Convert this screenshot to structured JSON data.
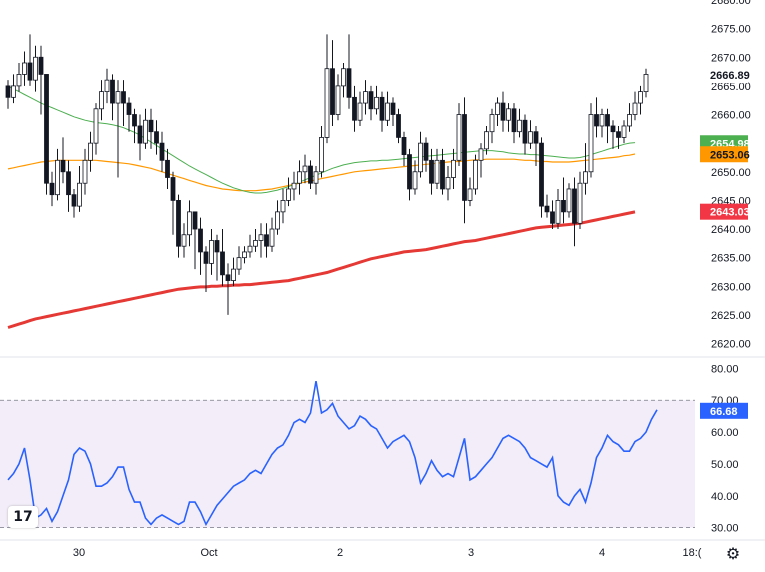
{
  "chart_data": [
    {
      "type": "candlestick",
      "ylim": [
        2618,
        2680
      ],
      "y_ticks": [
        "2680.00",
        "2675.00",
        "2670.00",
        "2665.00",
        "2660.00",
        "2650.00",
        "2645.00",
        "2640.00",
        "2635.00",
        "2630.00",
        "2625.00",
        "2620.00"
      ],
      "x_ticks": [
        "30",
        "Oct",
        "2",
        "3",
        "4",
        "18:("
      ],
      "price_labels": [
        {
          "value": 2666.89,
          "text": "2666.89",
          "bg": "#ffffff",
          "fg": "#131722"
        },
        {
          "value": 2654.98,
          "text": "2654.98",
          "bg": "#4caf50",
          "fg": "#ffffff"
        },
        {
          "value": 2653.06,
          "text": "2653.06",
          "bg": "#ff9800",
          "fg": "#131722"
        },
        {
          "value": 2643.03,
          "text": "2643.03",
          "bg": "#f23645",
          "fg": "#ffffff"
        }
      ],
      "candles": [
        [
          2665,
          2663,
          2666,
          2661
        ],
        [
          2663,
          2665,
          2667,
          2662
        ],
        [
          2665,
          2667,
          2669,
          2664
        ],
        [
          2667,
          2669,
          2671,
          2665
        ],
        [
          2669,
          2666,
          2674,
          2665
        ],
        [
          2666,
          2670,
          2672,
          2664
        ],
        [
          2670,
          2667,
          2672,
          2660
        ],
        [
          2667,
          2648,
          2667,
          2646
        ],
        [
          2648,
          2646,
          2650,
          2644
        ],
        [
          2646,
          2652,
          2654,
          2645
        ],
        [
          2652,
          2650,
          2656,
          2648
        ],
        [
          2650,
          2646,
          2652,
          2643
        ],
        [
          2646,
          2644,
          2647,
          2642
        ],
        [
          2644,
          2648,
          2651,
          2643
        ],
        [
          2648,
          2652,
          2654,
          2646
        ],
        [
          2652,
          2655,
          2657,
          2650
        ],
        [
          2655,
          2661,
          2662,
          2653
        ],
        [
          2661,
          2664,
          2666,
          2659
        ],
        [
          2664,
          2666,
          2668,
          2662
        ],
        [
          2666,
          2662,
          2667,
          2659
        ],
        [
          2662,
          2664,
          2666,
          2649
        ],
        [
          2664,
          2662,
          2666,
          2658
        ],
        [
          2662,
          2660,
          2663,
          2657
        ],
        [
          2660,
          2658,
          2661,
          2655
        ],
        [
          2658,
          2655,
          2660,
          2652
        ],
        [
          2655,
          2659,
          2661,
          2654
        ],
        [
          2659,
          2657,
          2661,
          2654
        ],
        [
          2657,
          2655,
          2659,
          2653
        ],
        [
          2655,
          2652,
          2657,
          2650
        ],
        [
          2652,
          2649,
          2654,
          2647
        ],
        [
          2649,
          2645,
          2650,
          2639
        ],
        [
          2645,
          2637,
          2646,
          2635
        ],
        [
          2637,
          2639,
          2641,
          2635
        ],
        [
          2639,
          2643,
          2645,
          2637
        ],
        [
          2643,
          2640,
          2643,
          2633
        ],
        [
          2640,
          2636,
          2642,
          2632
        ],
        [
          2636,
          2634,
          2637,
          2629
        ],
        [
          2634,
          2638,
          2640,
          2632
        ],
        [
          2638,
          2636,
          2639,
          2631
        ],
        [
          2636,
          2632,
          2640,
          2630
        ],
        [
          2632,
          2631,
          2634,
          2625
        ],
        [
          2631,
          2633,
          2635,
          2630
        ],
        [
          2633,
          2635,
          2637,
          2632
        ],
        [
          2635,
          2636,
          2637,
          2634
        ],
        [
          2636,
          2637,
          2639,
          2635
        ],
        [
          2637,
          2638,
          2640,
          2636
        ],
        [
          2638,
          2639,
          2641,
          2635
        ],
        [
          2639,
          2637,
          2641,
          2635
        ],
        [
          2637,
          2640,
          2642,
          2636
        ],
        [
          2640,
          2643,
          2645,
          2639
        ],
        [
          2643,
          2645,
          2647,
          2641
        ],
        [
          2645,
          2647,
          2649,
          2644
        ],
        [
          2647,
          2648,
          2650,
          2645
        ],
        [
          2648,
          2650,
          2652,
          2646
        ],
        [
          2650,
          2651,
          2653,
          2648
        ],
        [
          2651,
          2648,
          2652,
          2647
        ],
        [
          2648,
          2650,
          2651,
          2646
        ],
        [
          2650,
          2656,
          2658,
          2649
        ],
        [
          2656,
          2668,
          2674,
          2655
        ],
        [
          2668,
          2660,
          2673,
          2658
        ],
        [
          2660,
          2665,
          2667,
          2659
        ],
        [
          2665,
          2668,
          2669,
          2663
        ],
        [
          2668,
          2663,
          2674,
          2661
        ],
        [
          2663,
          2659,
          2665,
          2657
        ],
        [
          2659,
          2662,
          2664,
          2658
        ],
        [
          2662,
          2664,
          2666,
          2660
        ],
        [
          2664,
          2661,
          2665,
          2659
        ],
        [
          2661,
          2663,
          2665,
          2660
        ],
        [
          2663,
          2659,
          2664,
          2657
        ],
        [
          2659,
          2662,
          2664,
          2658
        ],
        [
          2662,
          2660,
          2663,
          2658
        ],
        [
          2660,
          2656,
          2661,
          2655
        ],
        [
          2656,
          2653,
          2657,
          2651
        ],
        [
          2653,
          2647,
          2654,
          2645
        ],
        [
          2647,
          2650,
          2652,
          2646
        ],
        [
          2650,
          2655,
          2657,
          2649
        ],
        [
          2655,
          2652,
          2656,
          2650
        ],
        [
          2652,
          2648,
          2654,
          2646
        ],
        [
          2648,
          2652,
          2654,
          2647
        ],
        [
          2652,
          2647,
          2654,
          2646
        ],
        [
          2647,
          2649,
          2651,
          2645
        ],
        [
          2649,
          2652,
          2654,
          2647
        ],
        [
          2652,
          2660,
          2662,
          2651
        ],
        [
          2660,
          2645,
          2663,
          2641
        ],
        [
          2645,
          2647,
          2649,
          2644
        ],
        [
          2647,
          2652,
          2653,
          2646
        ],
        [
          2652,
          2654,
          2655,
          2649
        ],
        [
          2654,
          2657,
          2658,
          2653
        ],
        [
          2657,
          2660,
          2661,
          2655
        ],
        [
          2660,
          2662,
          2663,
          2658
        ],
        [
          2662,
          2659,
          2664,
          2657
        ],
        [
          2659,
          2661,
          2662,
          2657
        ],
        [
          2661,
          2657,
          2662,
          2655
        ],
        [
          2657,
          2659,
          2661,
          2656
        ],
        [
          2659,
          2655,
          2660,
          2653
        ],
        [
          2655,
          2657,
          2659,
          2654
        ],
        [
          2657,
          2655,
          2658,
          2651
        ],
        [
          2655,
          2644,
          2656,
          2642
        ],
        [
          2644,
          2643,
          2646,
          2642
        ],
        [
          2643,
          2641,
          2645,
          2640
        ],
        [
          2641,
          2645,
          2647,
          2640
        ],
        [
          2645,
          2643,
          2649,
          2641
        ],
        [
          2643,
          2647,
          2648,
          2642
        ],
        [
          2647,
          2641,
          2649,
          2637
        ],
        [
          2641,
          2648,
          2650,
          2640
        ],
        [
          2648,
          2650,
          2655,
          2646
        ],
        [
          2650,
          2660,
          2662,
          2649
        ],
        [
          2660,
          2658,
          2663,
          2656
        ],
        [
          2658,
          2660,
          2661,
          2656
        ],
        [
          2660,
          2658,
          2661,
          2655
        ],
        [
          2658,
          2657,
          2659,
          2654
        ],
        [
          2657,
          2656,
          2658,
          2654
        ],
        [
          2656,
          2658,
          2659,
          2655
        ],
        [
          2658,
          2660,
          2662,
          2657
        ],
        [
          2660,
          2662,
          2664,
          2659
        ],
        [
          2662,
          2664,
          2665,
          2660
        ],
        [
          2664,
          2667,
          2668,
          2663
        ]
      ],
      "sma_green": [
        2665,
        2664.5,
        2664,
        2663.5,
        2663,
        2662.5,
        2662,
        2661.6,
        2661.2,
        2660.8,
        2660.4,
        2660,
        2659.6,
        2659.3,
        2659,
        2658.8,
        2658.6,
        2658.5,
        2658.4,
        2658.2,
        2658,
        2657.7,
        2657.3,
        2656.9,
        2656.4,
        2655.8,
        2655.2,
        2654.6,
        2654,
        2653.4,
        2652.8,
        2652.2,
        2651.6,
        2651,
        2650.5,
        2650,
        2649.5,
        2649,
        2648.5,
        2648,
        2647.6,
        2647.2,
        2646.9,
        2646.6,
        2646.4,
        2646.3,
        2646.3,
        2646.4,
        2646.6,
        2646.8,
        2647.1,
        2647.4,
        2647.8,
        2648.2,
        2648.6,
        2649,
        2649.4,
        2649.8,
        2650.2,
        2650.6,
        2650.9,
        2651.2,
        2651.4,
        2651.6,
        2651.7,
        2651.8,
        2651.9,
        2651.9,
        2652,
        2652,
        2652.1,
        2652.2,
        2652.3,
        2652.4,
        2652.5,
        2652.6,
        2652.7,
        2652.8,
        2652.9,
        2653,
        2653.1,
        2653.2,
        2653.3,
        2653.4,
        2653.5,
        2653.6,
        2653.7,
        2653.7,
        2653.7,
        2653.6,
        2653.5,
        2653.3,
        2653.2,
        2653.1,
        2653.1,
        2653,
        2653,
        2652.9,
        2652.8,
        2652.7,
        2652.6,
        2652.5,
        2652.4,
        2652.4,
        2652.5,
        2652.7,
        2653,
        2653.3,
        2653.6,
        2653.9,
        2654.2,
        2654.5,
        2654.8,
        2655,
        2655.1
      ],
      "sma_orange": [
        2650.5,
        2650.7,
        2650.9,
        2651.1,
        2651.3,
        2651.5,
        2651.7,
        2651.8,
        2651.9,
        2652,
        2652,
        2652,
        2652,
        2652,
        2652,
        2652,
        2652,
        2651.9,
        2651.8,
        2651.7,
        2651.6,
        2651.5,
        2651.4,
        2651.2,
        2651,
        2650.8,
        2650.6,
        2650.3,
        2650,
        2649.7,
        2649.4,
        2649.1,
        2648.8,
        2648.5,
        2648.2,
        2647.9,
        2647.6,
        2647.4,
        2647.2,
        2647,
        2646.9,
        2646.8,
        2646.7,
        2646.7,
        2646.7,
        2646.7,
        2646.8,
        2646.9,
        2647,
        2647.2,
        2647.4,
        2647.6,
        2647.8,
        2648,
        2648.2,
        2648.4,
        2648.6,
        2648.8,
        2649,
        2649.2,
        2649.4,
        2649.6,
        2649.8,
        2650,
        2650.1,
        2650.2,
        2650.3,
        2650.4,
        2650.5,
        2650.6,
        2650.7,
        2650.8,
        2650.9,
        2651,
        2651.1,
        2651.2,
        2651.3,
        2651.4,
        2651.5,
        2651.6,
        2651.7,
        2651.8,
        2651.8,
        2651.9,
        2652,
        2652.1,
        2652.1,
        2652.2,
        2652.2,
        2652.2,
        2652.2,
        2652.2,
        2652.2,
        2652.1,
        2652,
        2652,
        2651.9,
        2651.8,
        2651.8,
        2651.7,
        2651.7,
        2651.7,
        2651.7,
        2651.8,
        2651.9,
        2652,
        2652.1,
        2652.2,
        2652.3,
        2652.4,
        2652.5,
        2652.6,
        2652.8,
        2652.9,
        2653.1
      ],
      "sma_red": [
        2622.8,
        2623.1,
        2623.4,
        2623.7,
        2624,
        2624.3,
        2624.5,
        2624.7,
        2624.9,
        2625.1,
        2625.3,
        2625.5,
        2625.7,
        2625.9,
        2626.1,
        2626.3,
        2626.5,
        2626.7,
        2626.9,
        2627.1,
        2627.3,
        2627.5,
        2627.7,
        2627.9,
        2628.1,
        2628.3,
        2628.5,
        2628.7,
        2628.9,
        2629.1,
        2629.3,
        2629.5,
        2629.6,
        2629.7,
        2629.8,
        2629.9,
        2629.9,
        2630,
        2630,
        2630.1,
        2630.1,
        2630.2,
        2630.2,
        2630.3,
        2630.3,
        2630.4,
        2630.5,
        2630.6,
        2630.7,
        2630.8,
        2630.9,
        2631,
        2631.2,
        2631.4,
        2631.6,
        2631.8,
        2632,
        2632.2,
        2632.4,
        2632.7,
        2633,
        2633.3,
        2633.6,
        2633.9,
        2634.2,
        2634.5,
        2634.8,
        2635,
        2635.2,
        2635.4,
        2635.6,
        2635.8,
        2636,
        2636.1,
        2636.2,
        2636.3,
        2636.4,
        2636.6,
        2636.8,
        2637,
        2637.2,
        2637.4,
        2637.6,
        2637.8,
        2637.9,
        2638,
        2638.2,
        2638.4,
        2638.6,
        2638.8,
        2639,
        2639.2,
        2639.4,
        2639.6,
        2639.8,
        2640,
        2640.2,
        2640.3,
        2640.4,
        2640.5,
        2640.6,
        2640.7,
        2640.8,
        2640.9,
        2641,
        2641.2,
        2641.4,
        2641.6,
        2641.8,
        2642,
        2642.2,
        2642.4,
        2642.6,
        2642.8,
        2643
      ]
    },
    {
      "type": "line",
      "name": "RSI",
      "ylim": [
        28,
        82
      ],
      "y_ticks": [
        "80.00",
        "70.00",
        "60.00",
        "50.00",
        "40.00",
        "30.00"
      ],
      "band": [
        30,
        70
      ],
      "last_label": {
        "value": 66.68,
        "text": "66.68",
        "bg": "#2962ff",
        "fg": "#ffffff"
      },
      "values": [
        45,
        47,
        50,
        55,
        45,
        33,
        34,
        36,
        32,
        35,
        40,
        45,
        53,
        55,
        54,
        50,
        43,
        43,
        44,
        46,
        49,
        49,
        42,
        38,
        38,
        33,
        31,
        33,
        34,
        33,
        32,
        31,
        32,
        38,
        38,
        35,
        31,
        34,
        37,
        39,
        41,
        43,
        44,
        45,
        47,
        48,
        47,
        50,
        53,
        55,
        56,
        59,
        63,
        64,
        63,
        66,
        76,
        66,
        67,
        69,
        65,
        63,
        61,
        62,
        65,
        64,
        62,
        61,
        58,
        55,
        57,
        58,
        59,
        57,
        52,
        44,
        47,
        51,
        48,
        46,
        47,
        46,
        52,
        58,
        45,
        46,
        48,
        50,
        52,
        55,
        58,
        59,
        58,
        57,
        55,
        52,
        51,
        50,
        49,
        52,
        40,
        38,
        37,
        40,
        42,
        38,
        44,
        52,
        55,
        59,
        57,
        56,
        54,
        54,
        57,
        58,
        60,
        64,
        67
      ]
    }
  ]
}
